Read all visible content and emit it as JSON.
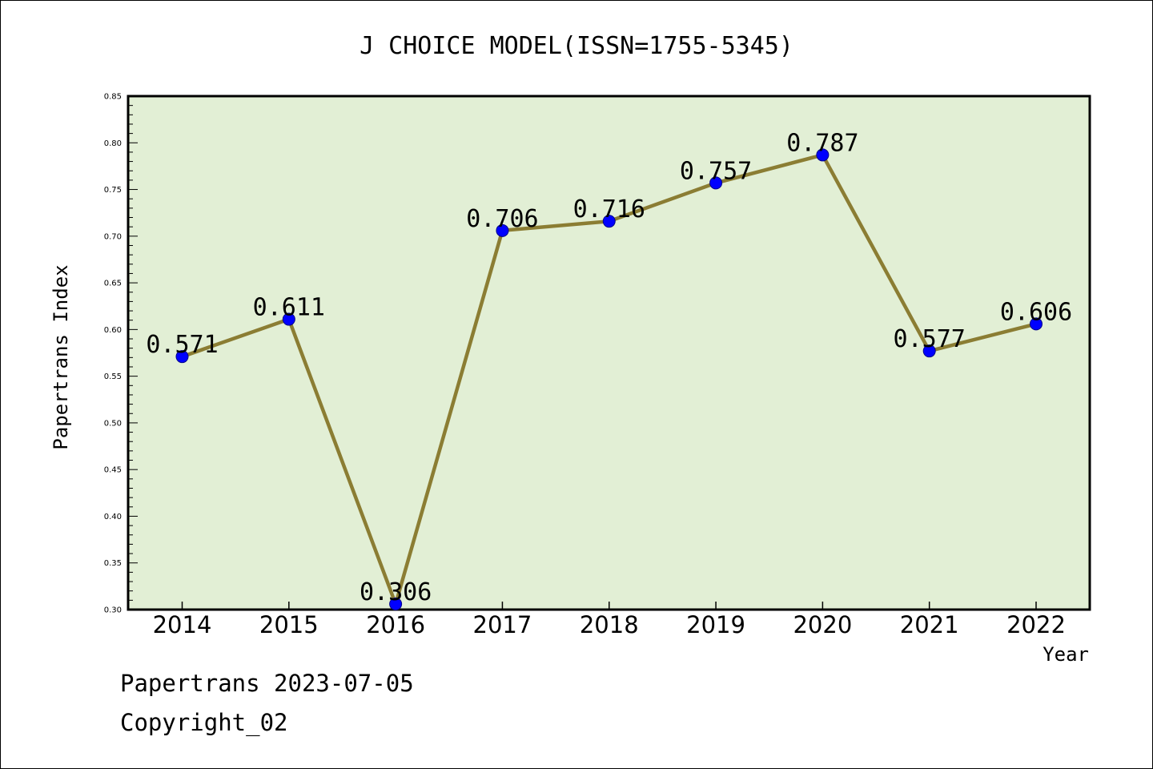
{
  "chart_data": {
    "type": "line",
    "title": "J CHOICE MODEL(ISSN=1755-5345)",
    "xlabel": "Year",
    "ylabel": "Papertrans Index",
    "categories": [
      "2014",
      "2015",
      "2016",
      "2017",
      "2018",
      "2019",
      "2020",
      "2021",
      "2022"
    ],
    "series": [
      {
        "values": [
          0.571,
          0.611,
          0.306,
          0.706,
          0.716,
          0.757,
          0.787,
          0.577,
          0.606
        ],
        "data_labels": [
          "0.571",
          "0.611",
          "0.306",
          "0.706",
          "0.716",
          "0.757",
          "0.787",
          "0.577",
          "0.606"
        ]
      }
    ],
    "ylim": [
      0.3,
      0.85
    ],
    "yticks": [
      "0.30",
      "0.35",
      "0.40",
      "0.45",
      "0.50",
      "0.55",
      "0.60",
      "0.65",
      "0.70",
      "0.75",
      "0.80",
      "0.85"
    ],
    "grid": false,
    "legend": "none"
  },
  "colors": {
    "plot_background": "#e2efd5",
    "line": "#8b7d33",
    "marker": "#0000ff",
    "axis": "#000000"
  },
  "footer": {
    "line1": "Papertrans 2023-07-05",
    "line2": "Copyright_02"
  }
}
